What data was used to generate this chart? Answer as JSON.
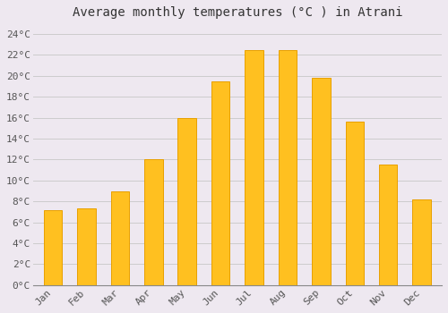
{
  "title": "Average monthly temperatures (°C ) in Atrani",
  "months": [
    "Jan",
    "Feb",
    "Mar",
    "Apr",
    "May",
    "Jun",
    "Jul",
    "Aug",
    "Sep",
    "Oct",
    "Nov",
    "Dec"
  ],
  "temperatures": [
    7.2,
    7.3,
    9.0,
    12.0,
    16.0,
    19.5,
    22.5,
    22.5,
    19.8,
    15.6,
    11.5,
    8.2
  ],
  "bar_color": "#FFC020",
  "bar_edge_color": "#E8A000",
  "background_color": "#EEE8F0",
  "grid_color": "#CCCCCC",
  "ylim": [
    0,
    25
  ],
  "yticks": [
    0,
    2,
    4,
    6,
    8,
    10,
    12,
    14,
    16,
    18,
    20,
    22,
    24
  ],
  "ytick_labels": [
    "0°C",
    "2°C",
    "4°C",
    "6°C",
    "8°C",
    "10°C",
    "12°C",
    "14°C",
    "16°C",
    "18°C",
    "20°C",
    "22°C",
    "24°C"
  ],
  "title_fontsize": 10,
  "tick_fontsize": 8,
  "font_family": "monospace",
  "bar_width": 0.55
}
